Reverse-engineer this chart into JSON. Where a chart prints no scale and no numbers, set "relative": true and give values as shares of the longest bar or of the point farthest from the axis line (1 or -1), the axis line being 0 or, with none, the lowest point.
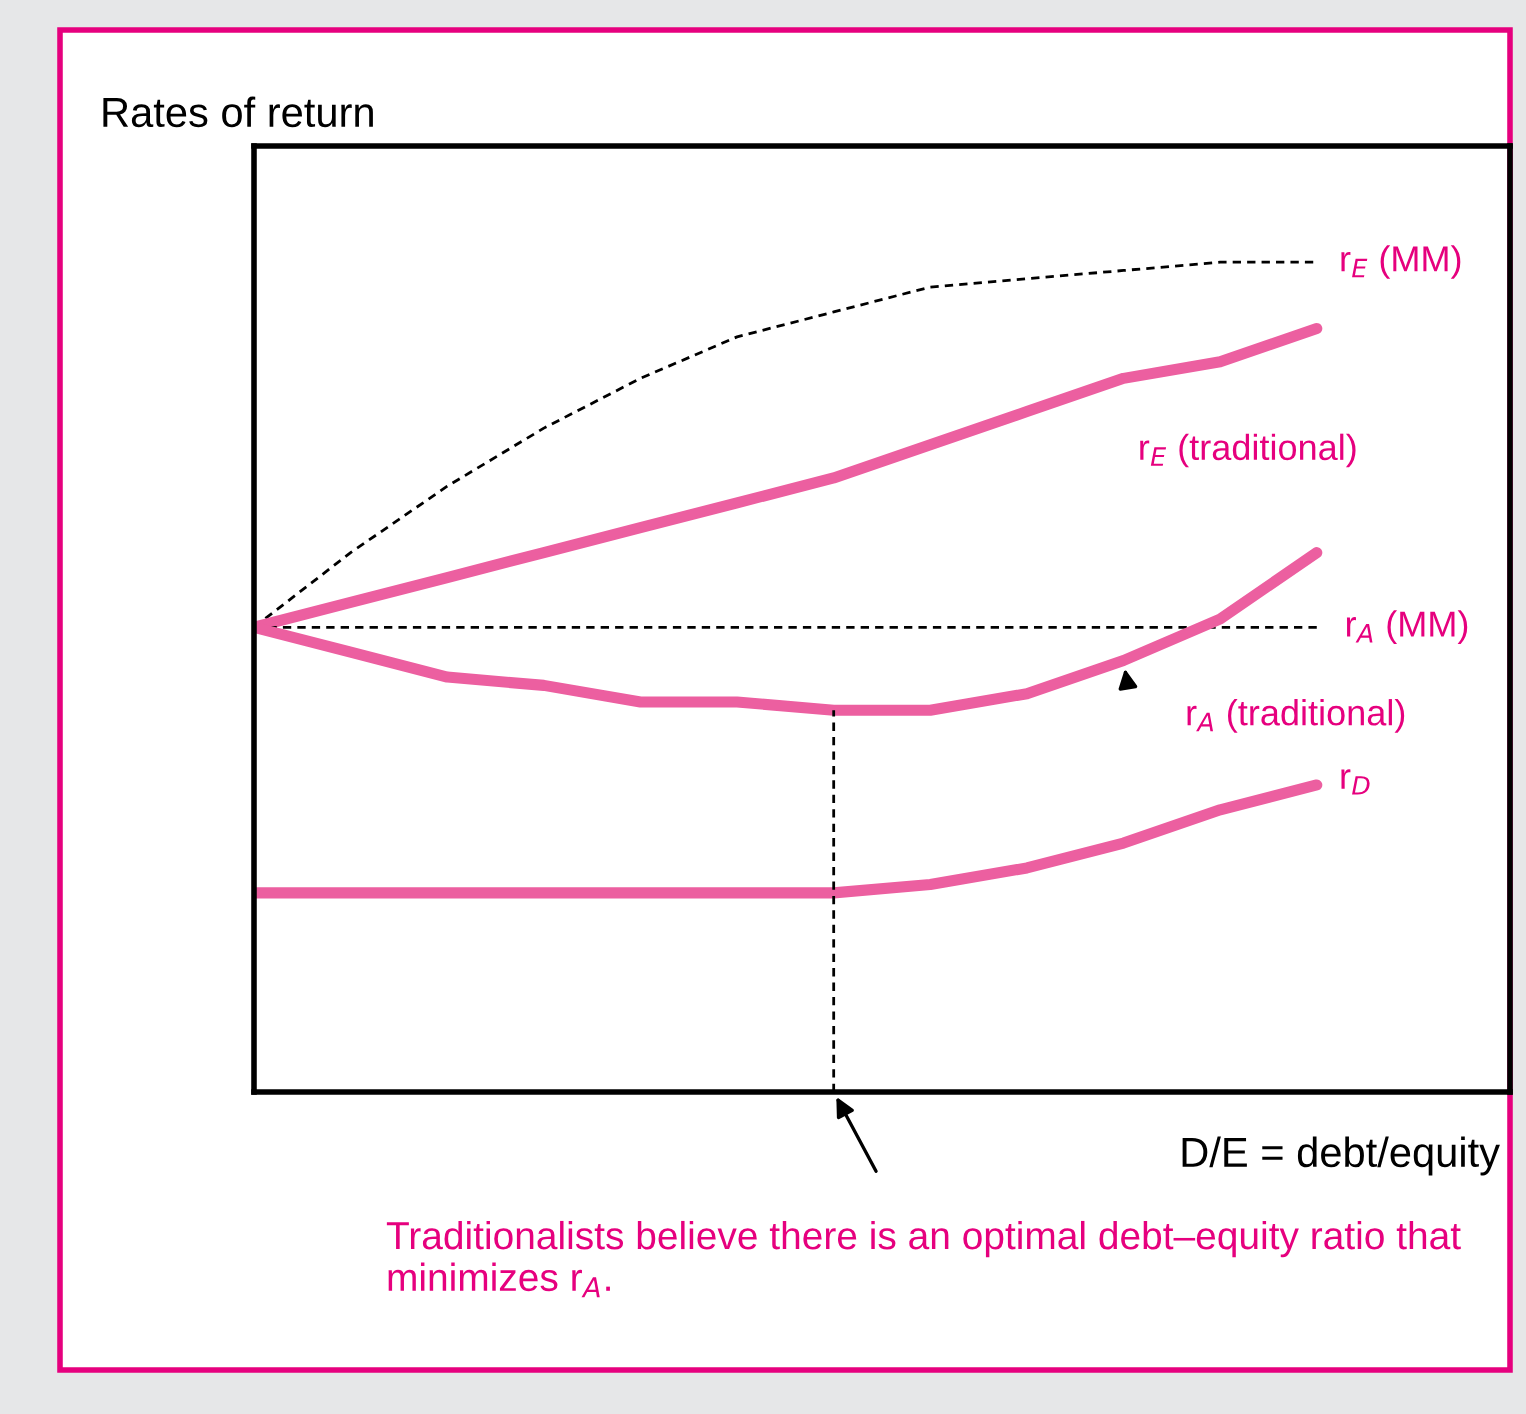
{
  "chart_data": {
    "type": "line",
    "title": "Rates of return",
    "xlabel": "D/E = debt/equity",
    "relative": true,
    "legend": false,
    "marker": "none",
    "categories": [
      null,
      null,
      null,
      null,
      null,
      null,
      null,
      null,
      null,
      null,
      null,
      null,
      null,
      null
    ],
    "series": [
      {
        "name": "r$_{E}$ (MM)",
        "color": "#000000",
        "line_style": "dashed",
        "values": [
          0.56,
          0.65,
          0.73,
          0.8,
          0.86,
          0.91,
          0.94,
          0.97,
          0.98,
          0.99,
          1.0,
          1.0,
          null,
          null
        ]
      },
      {
        "name": "r$_{E}$ (traditional)",
        "color": "#ec5fa0",
        "line_style": "solid",
        "values": [
          0.56,
          0.59,
          0.62,
          0.65,
          0.68,
          0.71,
          0.74,
          0.78,
          0.82,
          0.86,
          0.88,
          0.92,
          null,
          null
        ]
      },
      {
        "name": "r$_{A}$ (MM)",
        "color": "#000000",
        "line_style": "dashed",
        "values": [
          0.56,
          0.56,
          0.56,
          0.56,
          0.56,
          0.56,
          0.56,
          0.56,
          0.56,
          0.56,
          0.56,
          0.56,
          null,
          null
        ]
      },
      {
        "name": "r$_{A}$ (traditional)",
        "color": "#ec5fa0",
        "line_style": "solid",
        "values": [
          0.56,
          0.53,
          0.5,
          0.49,
          0.47,
          0.47,
          0.46,
          0.46,
          0.48,
          0.52,
          0.57,
          0.65,
          null,
          null
        ]
      },
      {
        "name": "r$_{D}$",
        "color": "#ec5fa0",
        "line_style": "solid",
        "values": [
          0.24,
          0.24,
          0.24,
          0.24,
          0.24,
          0.24,
          0.24,
          0.25,
          0.27,
          0.3,
          0.34,
          0.37,
          null,
          null
        ]
      }
    ],
    "annotations": [
      "Traditionalists believe there is an optimal debt–equity ratio that minimizes r$_{A}$."
    ]
  }
}
